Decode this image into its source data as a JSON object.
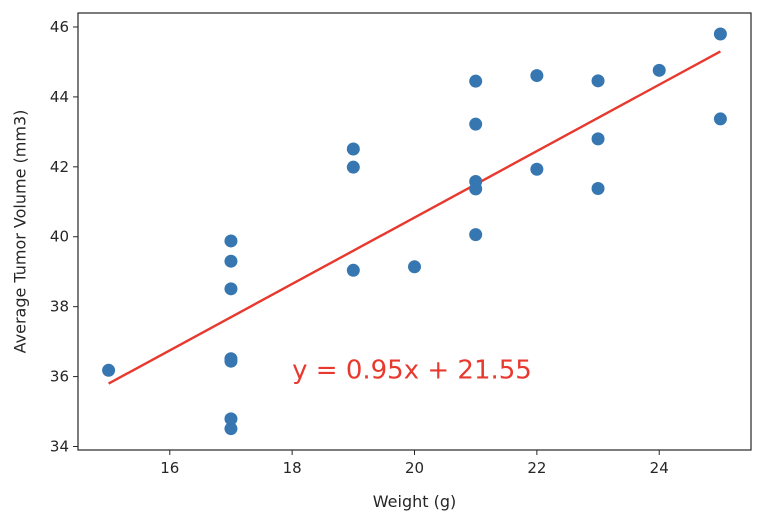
{
  "chart_data": {
    "type": "scatter",
    "title": "",
    "xlabel": "Weight (g)",
    "ylabel": "Average Tumor Volume (mm3)",
    "xlim": [
      14.5,
      25.5
    ],
    "ylim": [
      33.9,
      46.4
    ],
    "x_ticks": [
      16,
      18,
      20,
      22,
      24
    ],
    "y_ticks": [
      34,
      36,
      38,
      40,
      42,
      44,
      46
    ],
    "x_tick_labels": [
      "16",
      "18",
      "20",
      "22",
      "24"
    ],
    "y_tick_labels": [
      "34",
      "36",
      "38",
      "40",
      "42",
      "44",
      "46"
    ],
    "grid": false,
    "legend": "none",
    "series": [
      {
        "kind": "scatter",
        "color": "#3777b1",
        "points": [
          {
            "x": 15,
            "y": 36.18
          },
          {
            "x": 17,
            "y": 39.88
          },
          {
            "x": 17,
            "y": 39.3
          },
          {
            "x": 17,
            "y": 38.51
          },
          {
            "x": 17,
            "y": 36.51
          },
          {
            "x": 17,
            "y": 36.44
          },
          {
            "x": 17,
            "y": 34.79
          },
          {
            "x": 17,
            "y": 34.51
          },
          {
            "x": 19,
            "y": 42.51
          },
          {
            "x": 19,
            "y": 41.99
          },
          {
            "x": 19,
            "y": 39.04
          },
          {
            "x": 20,
            "y": 39.14
          },
          {
            "x": 21,
            "y": 44.45
          },
          {
            "x": 21,
            "y": 43.22
          },
          {
            "x": 21,
            "y": 41.58
          },
          {
            "x": 21,
            "y": 41.37
          },
          {
            "x": 21,
            "y": 40.06
          },
          {
            "x": 22,
            "y": 44.61
          },
          {
            "x": 22,
            "y": 41.93
          },
          {
            "x": 23,
            "y": 44.46
          },
          {
            "x": 23,
            "y": 42.8
          },
          {
            "x": 23,
            "y": 41.38
          },
          {
            "x": 24,
            "y": 44.76
          },
          {
            "x": 25,
            "y": 45.8
          },
          {
            "x": 25,
            "y": 43.37
          }
        ]
      },
      {
        "kind": "line",
        "color": "#e8392f",
        "slope": 0.95,
        "intercept": 21.55,
        "x_range": [
          15,
          25
        ]
      }
    ],
    "annotations": [
      {
        "text": "y = 0.95x + 21.55",
        "x": 18,
        "y": 36,
        "color": "#e8392f"
      }
    ]
  }
}
